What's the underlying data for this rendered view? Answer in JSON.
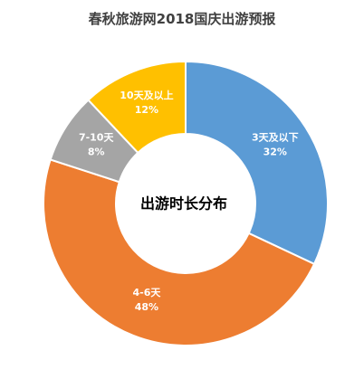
{
  "chart_data": {
    "type": "pie",
    "title": "春秋旅游网2018国庆出游预报",
    "center_label": "出游时长分布",
    "categories": [
      "3天及以下",
      "4-6天",
      "7-10天",
      "10天及以上"
    ],
    "values": [
      32,
      48,
      8,
      12
    ],
    "value_labels": [
      "32%",
      "48%",
      "8%",
      "12%"
    ],
    "colors": [
      "#5B9BD5",
      "#ED7D31",
      "#A5A5A5",
      "#FFC000"
    ],
    "legend": "none"
  }
}
